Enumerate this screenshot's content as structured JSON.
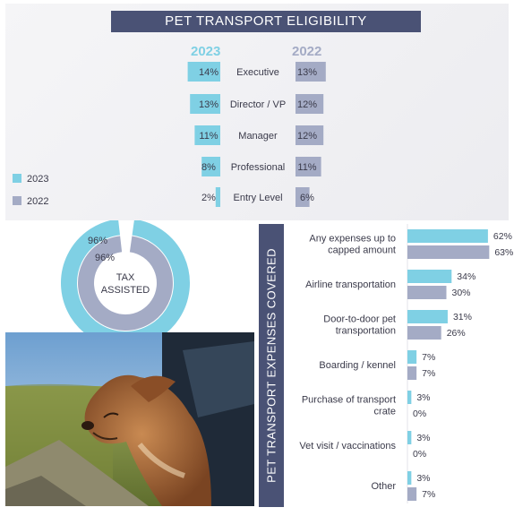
{
  "title": "PET TRANSPORT ELIGIBILITY",
  "legend": [
    {
      "label": "2023",
      "color": "#7fd0e4"
    },
    {
      "label": "2022",
      "color": "#a4abc5"
    }
  ],
  "chart_data": [
    {
      "type": "bar",
      "title": "PET TRANSPORT ELIGIBILITY",
      "categories": [
        "Executive",
        "Director / VP",
        "Manager",
        "Professional",
        "Entry Level"
      ],
      "series": [
        {
          "name": "2023",
          "values": [
            14,
            13,
            11,
            8,
            2
          ],
          "labels": [
            "14%",
            "13%",
            "11%",
            "8%",
            "2%"
          ],
          "color": "#7fd0e4"
        },
        {
          "name": "2022",
          "values": [
            13,
            12,
            12,
            11,
            6
          ],
          "labels": [
            "13%",
            "12%",
            "12%",
            "11%",
            "6%"
          ],
          "color": "#a4abc5"
        }
      ],
      "legend_position": "left"
    },
    {
      "type": "pie",
      "center_label": "TAX ASSISTED",
      "series": [
        {
          "name": "2023",
          "value": 96,
          "label": "96%",
          "color": "#7fd0e4"
        },
        {
          "name": "2022",
          "value": 96,
          "label": "96%",
          "color": "#a4abc5"
        }
      ]
    },
    {
      "type": "bar",
      "title": "PET TRANSPORT EXPENSES COVERED",
      "categories": [
        "Any expenses up to capped amount",
        "Airline transportation",
        "Door-to-door pet transportation",
        "Boarding / kennel",
        "Purchase of transport crate",
        "Vet visit / vaccinations",
        "Other"
      ],
      "category_lines": [
        [
          "Any expenses up to",
          "capped amount"
        ],
        [
          "Airline transportation"
        ],
        [
          "Door-to-door pet",
          "transportation"
        ],
        [
          "Boarding / kennel"
        ],
        [
          "Purchase of transport",
          "crate"
        ],
        [
          "Vet visit / vaccinations"
        ],
        [
          "Other"
        ]
      ],
      "series": [
        {
          "name": "2023",
          "values": [
            62,
            34,
            31,
            7,
            3,
            3,
            3
          ],
          "labels": [
            "62%",
            "34%",
            "31%",
            "7%",
            "3%",
            "3%",
            "3%"
          ],
          "color": "#7fd0e4"
        },
        {
          "name": "2022",
          "values": [
            63,
            30,
            26,
            7,
            0,
            0,
            7
          ],
          "labels": [
            "63%",
            "30%",
            "26%",
            "7%",
            "0%",
            "0%",
            "7%"
          ],
          "color": "#a4abc5"
        }
      ]
    }
  ]
}
